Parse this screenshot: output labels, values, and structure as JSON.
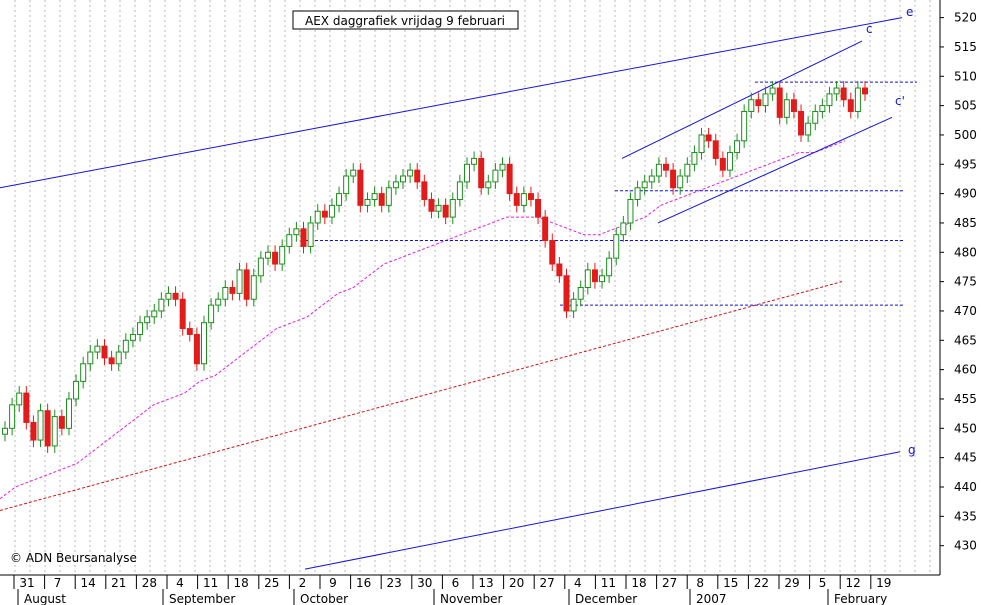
{
  "title": "AEX daggrafiek vrijdag 9 februari",
  "copyright": "© ADN Beursanalyse",
  "colors": {
    "background": "#ffffff",
    "grid": "#b8b8b8",
    "up_candle": "#1a8f1a",
    "down_candle": "#e31b1b",
    "trendline": "#1414d6",
    "ma_short": "#e21fe2",
    "ma_long": "#d01414",
    "support_line": "#1414d6"
  },
  "chart_data": {
    "type": "line",
    "title": "AEX daggrafiek vrijdag 9 februari",
    "y_axis": {
      "position": "right",
      "ylim": [
        425,
        523
      ],
      "ticks": [
        430,
        435,
        440,
        445,
        450,
        455,
        460,
        465,
        470,
        475,
        480,
        485,
        490,
        495,
        500,
        505,
        510,
        515,
        520
      ]
    },
    "x_ticks": [
      "31",
      "7",
      "14",
      "21",
      "28",
      "4",
      "11",
      "18",
      "25",
      "2",
      "9",
      "16",
      "23",
      "30",
      "6",
      "13",
      "20",
      "27",
      "4",
      "11",
      "18",
      "27",
      "8",
      "15",
      "22",
      "29",
      "5",
      "12",
      "19"
    ],
    "month_labels": [
      "August",
      "September",
      "October",
      "November",
      "December",
      "2007",
      "February"
    ],
    "grid": true,
    "daily_close": [
      450,
      454,
      456,
      451,
      448,
      453,
      447,
      452,
      450,
      455,
      458,
      461,
      463,
      464,
      462,
      461,
      463,
      465,
      466,
      468,
      469,
      470,
      472,
      473,
      472,
      467,
      466,
      461,
      468,
      471,
      472,
      474,
      473,
      477,
      472,
      476,
      479,
      480,
      478,
      481,
      483,
      484,
      481,
      485,
      487,
      486,
      488,
      490,
      493,
      494,
      488,
      489,
      490,
      488,
      491,
      492,
      493,
      494,
      492,
      489,
      487,
      488,
      486,
      489,
      492,
      495,
      496,
      491,
      492,
      494,
      495,
      490,
      488,
      490,
      489,
      486,
      482,
      478,
      476,
      470,
      472,
      474,
      477,
      475,
      476,
      479,
      483,
      485,
      489,
      491,
      492,
      493,
      495,
      494,
      491,
      493,
      495,
      497,
      500,
      499,
      496,
      494,
      497,
      499,
      504,
      506,
      505,
      507,
      508,
      503,
      506,
      504,
      500,
      502,
      504,
      505,
      507,
      508,
      506,
      504,
      508,
      507
    ],
    "series": [
      {
        "type": "line",
        "values": [
          438,
          440,
          441,
          442,
          443,
          444,
          446,
          448,
          450,
          452,
          454,
          455,
          456,
          458,
          459,
          461,
          463,
          465,
          467,
          468,
          469,
          471,
          473,
          474,
          476,
          478,
          479,
          480,
          481,
          482,
          483,
          484,
          485,
          486,
          486,
          486,
          485,
          484,
          483,
          483,
          484,
          485,
          486,
          488,
          489,
          490,
          491,
          492,
          493,
          494,
          495,
          496,
          497,
          497,
          498,
          499
        ]
      },
      {
        "type": "line",
        "values": [
          436,
          437,
          438,
          439,
          440,
          441,
          442,
          443,
          444,
          445,
          446,
          447,
          448,
          449,
          450,
          451,
          452,
          453,
          454,
          455,
          456,
          457,
          458,
          459,
          460,
          461,
          462,
          463,
          464,
          465,
          466,
          467,
          468,
          469,
          470,
          471,
          472,
          473,
          474,
          475
        ]
      },
      {
        "name": "e",
        "type": "line",
        "values": [
          491,
          520
        ]
      },
      {
        "name": "g",
        "type": "line",
        "values": [
          426,
          446
        ]
      },
      {
        "name": "c",
        "type": "line",
        "values": [
          496,
          516
        ]
      },
      {
        "name": "c'",
        "type": "line",
        "values": [
          485,
          503
        ]
      }
    ],
    "support_levels": [
      509,
      490.5,
      482,
      471
    ],
    "annotations": [
      "e",
      "c",
      "c'",
      "g"
    ]
  }
}
